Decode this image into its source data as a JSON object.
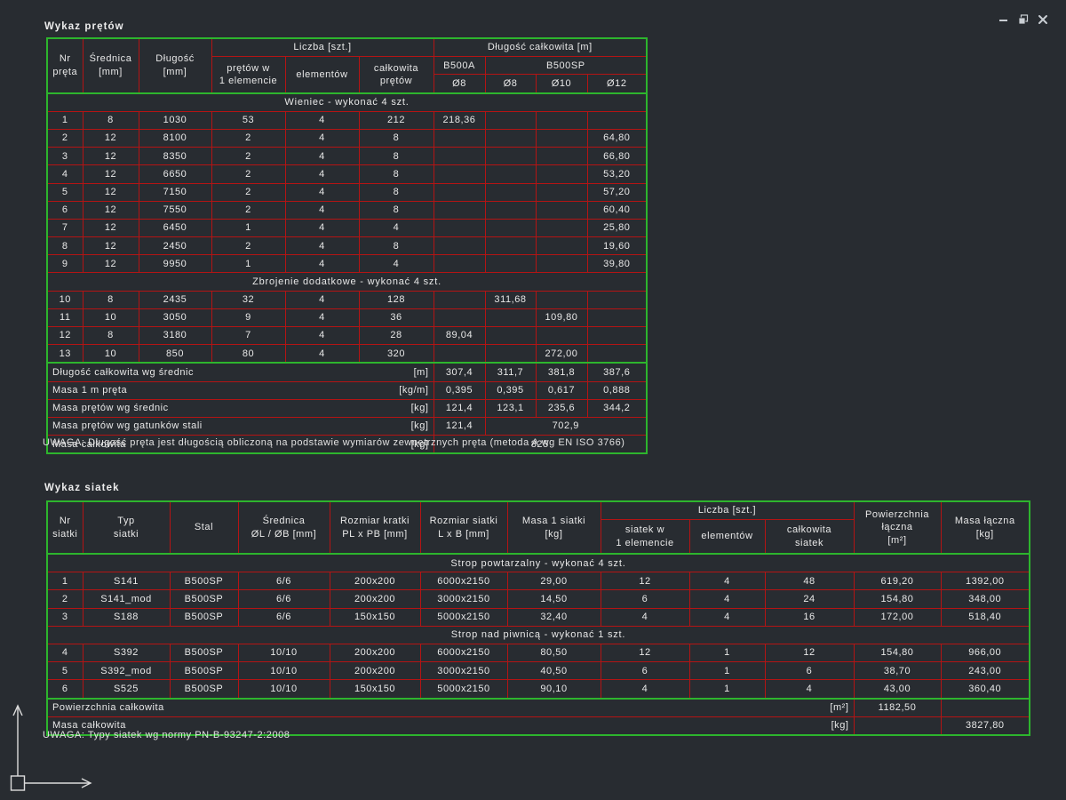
{
  "window": {
    "controls": {
      "minimize": "minimize",
      "restore": "restore",
      "close": "close"
    }
  },
  "colors": {
    "background": "#282c31",
    "table_border_green": "#2db52d",
    "grid_line_red": "#b41414",
    "text": "#e8e8e8",
    "window_icon": "#c9ced3"
  },
  "bars_table": {
    "title": "Wykaz prętów",
    "header": [
      [
        {
          "label": "Nr\npręta",
          "rs": 3
        },
        {
          "label": "Średnica\n[mm]",
          "rs": 3
        },
        {
          "label": "Długość\n[mm]",
          "rs": 3
        },
        {
          "label": "Liczba [szt.]",
          "cs": 3
        },
        {
          "label": "Długość całkowita [m]",
          "cs": 4
        }
      ],
      [
        {
          "label": "prętów w\n1 elemencie",
          "rs": 2
        },
        {
          "label": "elementów",
          "rs": 2
        },
        {
          "label": "całkowita\nprętów",
          "rs": 2
        },
        {
          "label": "B500A"
        },
        {
          "label": "B500SP",
          "cs": 3
        }
      ],
      [
        {
          "label": "Ø8"
        },
        {
          "label": "Ø8"
        },
        {
          "label": "Ø10"
        },
        {
          "label": "Ø12"
        }
      ]
    ],
    "body": [
      {
        "section": "Wieniec - wykonać 4 szt."
      },
      {
        "cells": [
          "1",
          "8",
          "1030",
          "53",
          "4",
          "212",
          "218,36",
          "",
          "",
          ""
        ]
      },
      {
        "cells": [
          "2",
          "12",
          "8100",
          "2",
          "4",
          "8",
          "",
          "",
          "",
          "64,80"
        ]
      },
      {
        "cells": [
          "3",
          "12",
          "8350",
          "2",
          "4",
          "8",
          "",
          "",
          "",
          "66,80"
        ]
      },
      {
        "cells": [
          "4",
          "12",
          "6650",
          "2",
          "4",
          "8",
          "",
          "",
          "",
          "53,20"
        ]
      },
      {
        "cells": [
          "5",
          "12",
          "7150",
          "2",
          "4",
          "8",
          "",
          "",
          "",
          "57,20"
        ]
      },
      {
        "cells": [
          "6",
          "12",
          "7550",
          "2",
          "4",
          "8",
          "",
          "",
          "",
          "60,40"
        ]
      },
      {
        "cells": [
          "7",
          "12",
          "6450",
          "1",
          "4",
          "4",
          "",
          "",
          "",
          "25,80"
        ]
      },
      {
        "cells": [
          "8",
          "12",
          "2450",
          "2",
          "4",
          "8",
          "",
          "",
          "",
          "19,60"
        ]
      },
      {
        "cells": [
          "9",
          "12",
          "9950",
          "1",
          "4",
          "4",
          "",
          "",
          "",
          "39,80"
        ]
      },
      {
        "section": "Zbrojenie dodatkowe - wykonać 4 szt."
      },
      {
        "cells": [
          "10",
          "8",
          "2435",
          "32",
          "4",
          "128",
          "",
          "311,68",
          "",
          ""
        ]
      },
      {
        "cells": [
          "11",
          "10",
          "3050",
          "9",
          "4",
          "36",
          "",
          "",
          "109,80",
          ""
        ]
      },
      {
        "cells": [
          "12",
          "8",
          "3180",
          "7",
          "4",
          "28",
          "89,04",
          "",
          "",
          ""
        ]
      },
      {
        "cells": [
          "13",
          "10",
          "850",
          "80",
          "4",
          "320",
          "",
          "",
          "272,00",
          ""
        ]
      }
    ],
    "summary": [
      {
        "label": "Długość całkowita wg średnic",
        "unit": "[m]",
        "values": [
          [
            "307,4"
          ],
          [
            "311,7"
          ],
          [
            "381,8"
          ],
          [
            "387,6"
          ]
        ]
      },
      {
        "label": "Masa 1 m pręta",
        "unit": "[kg/m]",
        "values": [
          [
            "0,395"
          ],
          [
            "0,395"
          ],
          [
            "0,617"
          ],
          [
            "0,888"
          ]
        ]
      },
      {
        "label": "Masa prętów wg średnic",
        "unit": "[kg]",
        "values": [
          [
            "121,4"
          ],
          [
            "123,1"
          ],
          [
            "235,6"
          ],
          [
            "344,2"
          ]
        ]
      },
      {
        "label": "Masa prętów wg gatunków stali",
        "unit": "[kg]",
        "values": [
          [
            "121,4"
          ],
          [
            "702,9",
            3
          ]
        ]
      },
      {
        "label": "Masa całkowita",
        "unit": "[kg]",
        "values": [
          [
            "825",
            4
          ]
        ]
      }
    ],
    "note": "UWAGA: Długość pręta jest długością obliczoną na podstawie wymiarów zewnętrznych pręta (metoda A wg EN ISO 3766)"
  },
  "meshes_table": {
    "title": "Wykaz siatek",
    "header": [
      [
        {
          "label": "Nr\nsiatki",
          "rs": 2
        },
        {
          "label": "Typ\nsiatki",
          "rs": 2
        },
        {
          "label": "Stal",
          "rs": 2
        },
        {
          "label": "Średnica\nØL / ØB [mm]",
          "rs": 2
        },
        {
          "label": "Rozmiar kratki\nPL x PB [mm]",
          "rs": 2
        },
        {
          "label": "Rozmiar siatki\nL x B [mm]",
          "rs": 2
        },
        {
          "label": "Masa 1 siatki\n[kg]",
          "rs": 2
        },
        {
          "label": "Liczba [szt.]",
          "cs": 3
        },
        {
          "label": "Powierzchnia\nłączna\n[m²]",
          "rs": 2
        },
        {
          "label": "Masa łączna\n[kg]",
          "rs": 2
        }
      ],
      [
        {
          "label": "siatek w\n1 elemencie"
        },
        {
          "label": "elementów"
        },
        {
          "label": "całkowita\nsiatek"
        }
      ]
    ],
    "body": [
      {
        "section": "Strop powtarzalny - wykonać 4 szt."
      },
      {
        "cells": [
          "1",
          "S141",
          "B500SP",
          "6/6",
          "200x200",
          "6000x2150",
          "29,00",
          "12",
          "4",
          "48",
          "619,20",
          "1392,00"
        ]
      },
      {
        "cells": [
          "2",
          "S141_mod",
          "B500SP",
          "6/6",
          "200x200",
          "3000x2150",
          "14,50",
          "6",
          "4",
          "24",
          "154,80",
          "348,00"
        ]
      },
      {
        "cells": [
          "3",
          "S188",
          "B500SP",
          "6/6",
          "150x150",
          "5000x2150",
          "32,40",
          "4",
          "4",
          "16",
          "172,00",
          "518,40"
        ]
      },
      {
        "section": "Strop nad piwnicą - wykonać 1 szt."
      },
      {
        "cells": [
          "4",
          "S392",
          "B500SP",
          "10/10",
          "200x200",
          "6000x2150",
          "80,50",
          "12",
          "1",
          "12",
          "154,80",
          "966,00"
        ]
      },
      {
        "cells": [
          "5",
          "S392_mod",
          "B500SP",
          "10/10",
          "200x200",
          "3000x2150",
          "40,50",
          "6",
          "1",
          "6",
          "38,70",
          "243,00"
        ]
      },
      {
        "cells": [
          "6",
          "S525",
          "B500SP",
          "10/10",
          "150x150",
          "5000x2150",
          "90,10",
          "4",
          "1",
          "4",
          "43,00",
          "360,40"
        ]
      }
    ],
    "summary": [
      {
        "label": "Powierzchnia całkowita",
        "unit": "[m²]",
        "values": [
          [
            "1182,50"
          ],
          [
            ""
          ]
        ]
      },
      {
        "label": "Masa całkowita",
        "unit": "[kg]",
        "values": [
          [
            ""
          ],
          [
            "3827,80"
          ]
        ]
      }
    ],
    "note": "UWAGA: Typy siatek wg normy PN-B-93247-2:2008"
  }
}
